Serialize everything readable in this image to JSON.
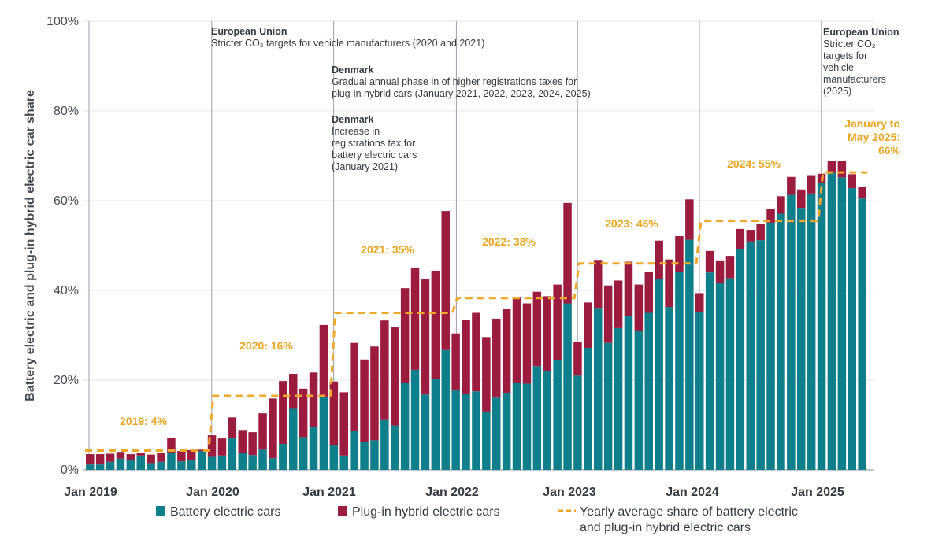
{
  "chart_data": {
    "type": "bar",
    "stacked": true,
    "ylabel": "Battery electric and plug-in hybrid electric car share",
    "y_ticks": [
      "0%",
      "20%",
      "40%",
      "60%",
      "80%",
      "100%"
    ],
    "ylim": [
      0,
      100
    ],
    "grid": "horizontal",
    "x_labels": [
      "Jan 2019",
      "Jan 2020",
      "Jan 2021",
      "Jan 2022",
      "Jan 2023",
      "Jan 2024",
      "Jan 2025"
    ],
    "x_months": [
      "2019-01",
      "2019-02",
      "2019-03",
      "2019-04",
      "2019-05",
      "2019-06",
      "2019-07",
      "2019-08",
      "2019-09",
      "2019-10",
      "2019-11",
      "2019-12",
      "2020-01",
      "2020-02",
      "2020-03",
      "2020-04",
      "2020-05",
      "2020-06",
      "2020-07",
      "2020-08",
      "2020-09",
      "2020-10",
      "2020-11",
      "2020-12",
      "2021-01",
      "2021-02",
      "2021-03",
      "2021-04",
      "2021-05",
      "2021-06",
      "2021-07",
      "2021-08",
      "2021-09",
      "2021-10",
      "2021-11",
      "2021-12",
      "2022-01",
      "2022-02",
      "2022-03",
      "2022-04",
      "2022-05",
      "2022-06",
      "2022-07",
      "2022-08",
      "2022-09",
      "2022-10",
      "2022-11",
      "2022-12",
      "2023-01",
      "2023-02",
      "2023-03",
      "2023-04",
      "2023-05",
      "2023-06",
      "2023-07",
      "2023-08",
      "2023-09",
      "2023-10",
      "2023-11",
      "2023-12",
      "2024-01",
      "2024-02",
      "2024-03",
      "2024-04",
      "2024-05",
      "2024-06",
      "2024-07",
      "2024-08",
      "2024-09",
      "2024-10",
      "2024-11",
      "2024-12",
      "2025-01",
      "2025-02",
      "2025-03",
      "2025-04",
      "2025-05"
    ],
    "series": [
      {
        "name": "Battery electric cars",
        "color": "#0f7f8c",
        "values": [
          1.2,
          1.2,
          1.8,
          2.5,
          2.1,
          3.2,
          1.5,
          1.8,
          3.8,
          1.9,
          2.1,
          4.2,
          2.9,
          3.2,
          7.2,
          3.8,
          3.3,
          4.5,
          2.6,
          5.8,
          13.6,
          7.3,
          9.6,
          16.2,
          5.5,
          3.2,
          8.7,
          6.3,
          6.6,
          11.1,
          9.9,
          19.3,
          22.3,
          16.8,
          20.2,
          26.7,
          17.7,
          17.0,
          17.5,
          13.0,
          16.1,
          17.2,
          19.3,
          19.2,
          23.1,
          22.1,
          24.5,
          37.1,
          21.0,
          27.2,
          36.1,
          28.3,
          31.6,
          34.3,
          31.0,
          35.0,
          42.5,
          36.3,
          44.2,
          51.3,
          35.1,
          44.0,
          41.7,
          42.7,
          49.3,
          50.9,
          51.2,
          55.1,
          57.1,
          61.3,
          58.4,
          61.6,
          64.0,
          66.2,
          65.2,
          62.8,
          60.5
        ]
      },
      {
        "name": "Plug-in hybrid electric cars",
        "color": "#9b1c3f",
        "values": [
          2.3,
          2.3,
          1.8,
          1.5,
          1.4,
          0.5,
          1.9,
          1.9,
          3.4,
          2.3,
          2.3,
          0.3,
          4.8,
          3.8,
          4.5,
          5.1,
          5.1,
          8.1,
          13.3,
          14.0,
          7.8,
          10.8,
          12.1,
          16.1,
          14.2,
          14.1,
          19.6,
          18.3,
          20.9,
          22.2,
          21.9,
          21.2,
          22.8,
          25.7,
          24.2,
          31.0,
          12.7,
          16.4,
          17.5,
          16.6,
          17.6,
          18.6,
          19.1,
          17.9,
          16.6,
          16.6,
          16.8,
          22.4,
          7.6,
          10.1,
          10.7,
          12.8,
          10.6,
          12.1,
          10.3,
          9.2,
          8.6,
          10.6,
          7.9,
          9.0,
          4.3,
          4.8,
          5.0,
          5.0,
          4.4,
          2.6,
          3.7,
          3.1,
          3.9,
          4.0,
          4.1,
          4.1,
          2.0,
          2.6,
          3.7,
          3.1,
          2.5
        ]
      }
    ],
    "yearly_average": {
      "name": "Yearly average share of battery electric and plug-in hybrid electric cars",
      "color": "#f0a82a",
      "segments": [
        {
          "label": "2019: 4%",
          "value": 4.3,
          "start": "2019-01",
          "end": "2019-12"
        },
        {
          "label": "2020: 16%",
          "value": 16.5,
          "start": "2020-01",
          "end": "2020-12"
        },
        {
          "label": "2021: 35%",
          "value": 35.0,
          "start": "2021-01",
          "end": "2021-12"
        },
        {
          "label": "2022: 38%",
          "value": 38.3,
          "start": "2022-01",
          "end": "2022-12"
        },
        {
          "label": "2023: 46%",
          "value": 46.0,
          "start": "2023-01",
          "end": "2023-12"
        },
        {
          "label": "2024: 55%",
          "value": 55.5,
          "start": "2024-01",
          "end": "2024-12"
        },
        {
          "label": "January to May 2025: 66%",
          "value": 66.3,
          "start": "2025-01",
          "end": "2025-05"
        }
      ]
    },
    "annotations": [
      {
        "title": "European Union",
        "lines": [
          "Stricter CO₂ targets for vehicle manufacturers (2020 and 2021)"
        ],
        "at": "2020-01"
      },
      {
        "title": "Denmark",
        "lines": [
          "Gradual annual phase in of higher registrations taxes for",
          "plug-in hybrid cars (January 2021, 2022, 2023, 2024, 2025)"
        ],
        "at": "2021-01"
      },
      {
        "title": "Denmark",
        "lines": [
          "Increase in",
          "registrations tax for",
          "battery electric cars",
          "(January 2021)"
        ],
        "at": "2021-01"
      },
      {
        "title": "European Union",
        "lines": [
          "Stricter CO₂",
          "targets for",
          "vehicle",
          "manufacturers",
          "(2025)"
        ],
        "at": "2025-01"
      }
    ],
    "legend": {
      "position": "bottom",
      "items": [
        "Battery electric cars",
        "Plug-in hybrid electric cars",
        "Yearly average share of battery electric",
        "and plug-in hybrid electric cars"
      ]
    }
  }
}
